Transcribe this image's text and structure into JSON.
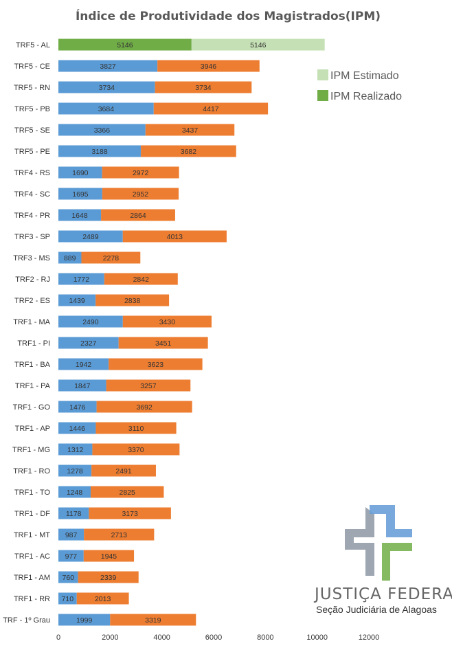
{
  "chart_data": {
    "type": "bar",
    "orientation": "horizontal",
    "stacked": true,
    "title": "Índice de Produtividade dos Magistrados(IPM)",
    "xlim": [
      0,
      12000
    ],
    "xticks": [
      "0",
      "2000",
      "4000",
      "6000",
      "8000",
      "10000",
      "12000"
    ],
    "categories": [
      "TRF5 - AL",
      "TRF5 - CE",
      "TRF5 - RN",
      "TRF5 - PB",
      "TRF5 - SE",
      "TRF5 - PE",
      "TRF4 - RS",
      "TRF4 - SC",
      "TRF4 - PR",
      "TRF3 - SP",
      "TRF3 - MS",
      "TRF2 - RJ",
      "TRF2 - ES",
      "TRF1 - MA",
      "TRF1 - PI",
      "TRF1 - BA",
      "TRF1 - PA",
      "TRF1 - GO",
      "TRF1 - AP",
      "TRF1 - MG",
      "TRF1 - RO",
      "TRF1 - TO",
      "TRF1 - DF",
      "TRF1 - MT",
      "TRF1 - AC",
      "TRF1 - AM",
      "TRF1 - RR",
      "TRF - 1º Grau"
    ],
    "series": [
      {
        "name": "IPM Realizado",
        "values": [
          5146,
          3827,
          3734,
          3684,
          3366,
          3188,
          1690,
          1695,
          1648,
          2489,
          889,
          1772,
          1439,
          2490,
          2327,
          1942,
          1847,
          1476,
          1446,
          1312,
          1278,
          1248,
          1178,
          987,
          977,
          760,
          710,
          1999
        ]
      },
      {
        "name": "IPM Estimado",
        "values": [
          5146,
          3946,
          3734,
          4417,
          3437,
          3682,
          2972,
          2952,
          2864,
          4013,
          2278,
          2842,
          2838,
          3430,
          3451,
          3623,
          3257,
          3692,
          3110,
          3370,
          2491,
          2825,
          3173,
          2713,
          1945,
          2339,
          2013,
          3319
        ]
      }
    ],
    "legend": [
      {
        "name": "IPM Estimado",
        "color": "#c5e0b4"
      },
      {
        "name": "IPM Realizado",
        "color": "#70ad47"
      }
    ],
    "legend_position": "top-right"
  },
  "colors": {
    "realizado": "#5b9bd5",
    "estimado": "#ed7d31",
    "highlight_realizado": "#70ad47",
    "highlight_estimado": "#c5e0b4"
  },
  "logo": {
    "title": "JUSTIÇA FEDERAL",
    "subtitle": "Seção Judiciária de Alagoas"
  }
}
